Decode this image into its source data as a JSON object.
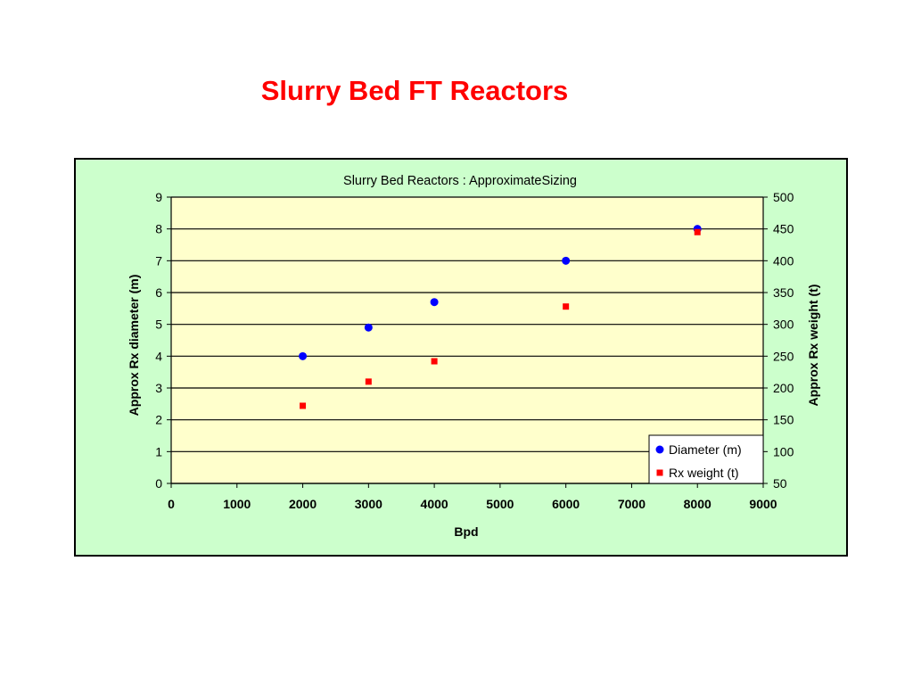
{
  "slide": {
    "title": "Slurry Bed FT Reactors"
  },
  "chart_data": {
    "type": "scatter",
    "title": "Slurry Bed Reactors : ApproximateSizing",
    "xlabel": "Bpd",
    "ylabel": "Approx Rx diameter (m)",
    "y2label": "Approx Rx weight (t)",
    "xlim": [
      0,
      9000
    ],
    "ylim": [
      0,
      9
    ],
    "y2lim": [
      50,
      500
    ],
    "xticks": [
      0,
      1000,
      2000,
      3000,
      4000,
      5000,
      6000,
      7000,
      8000,
      9000
    ],
    "yticks": [
      0,
      1,
      2,
      3,
      4,
      5,
      6,
      7,
      8,
      9
    ],
    "y2ticks": [
      50,
      100,
      150,
      200,
      250,
      300,
      350,
      400,
      450,
      500
    ],
    "grid": "horizontal",
    "plot_background": "#ffffcc",
    "frame_background": "#ccffcc",
    "legend_position": "bottom-right",
    "series": [
      {
        "name": "Diameter (m)",
        "axis": "left",
        "marker": "circle",
        "color": "#0000ff",
        "x": [
          2000,
          3000,
          4000,
          6000,
          8000
        ],
        "y": [
          4.0,
          4.9,
          5.7,
          7.0,
          8.0
        ]
      },
      {
        "name": "Rx weight (t)",
        "axis": "right",
        "marker": "square",
        "color": "#ff0000",
        "x": [
          2000,
          3000,
          4000,
          6000,
          8000
        ],
        "y": [
          172,
          210,
          242,
          328,
          445
        ]
      }
    ]
  }
}
